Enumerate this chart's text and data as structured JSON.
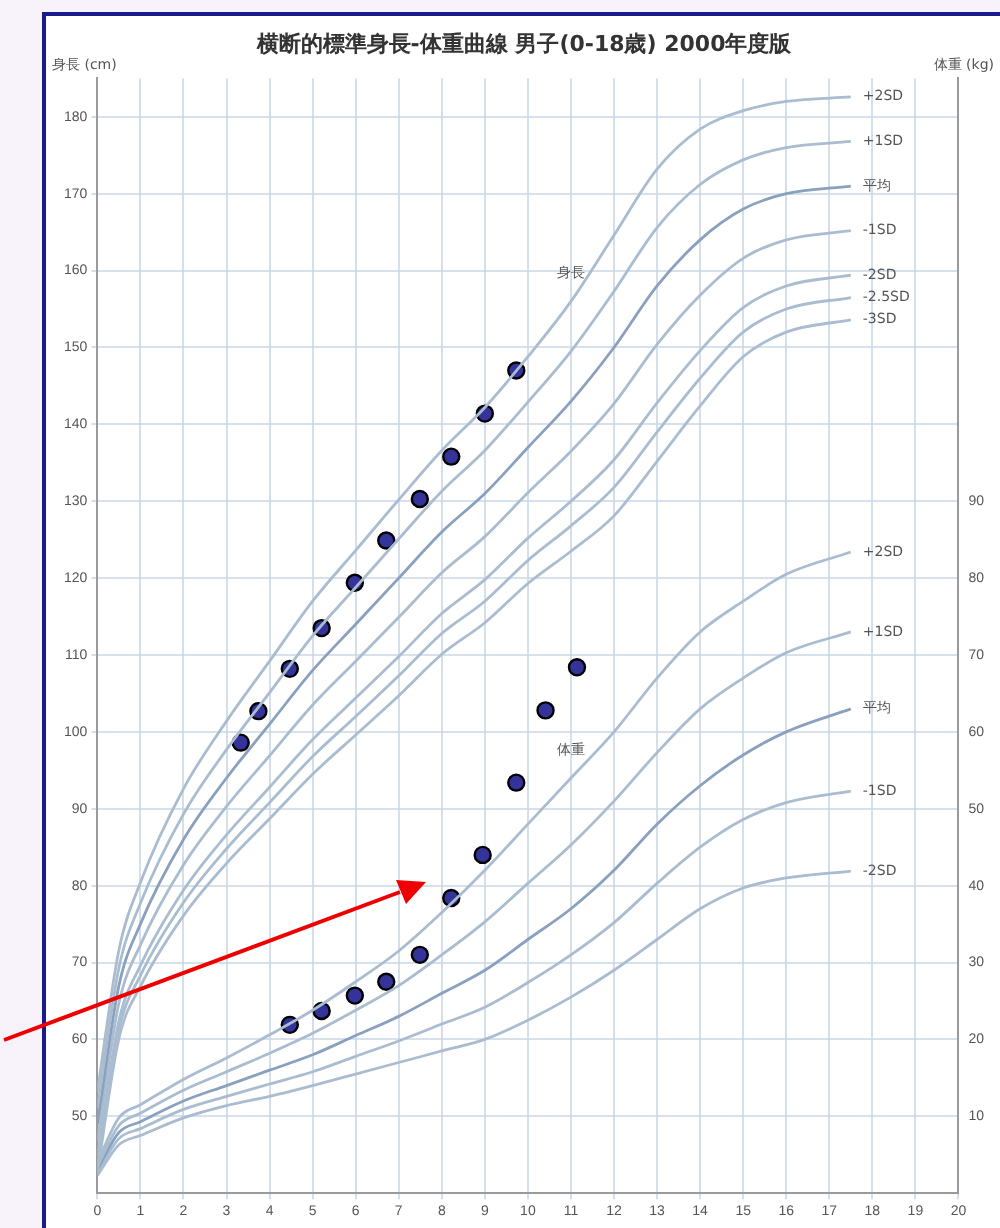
{
  "chart_data": {
    "type": "line",
    "title": "横断的標準身長-体重曲線 男子(0-18歳) 2000年度版",
    "ylabel": "身長 (cm)",
    "y2label": "体重 (kg)",
    "xlim": [
      0,
      20
    ],
    "xticks": [
      0,
      1,
      2,
      3,
      4,
      5,
      6,
      7,
      8,
      9,
      10,
      11,
      12,
      13,
      14,
      15,
      16,
      17,
      18,
      19,
      20
    ],
    "ylim": [
      40,
      185
    ],
    "yticks": [
      50,
      60,
      70,
      80,
      90,
      100,
      110,
      120,
      130,
      140,
      150,
      160,
      170,
      180
    ],
    "y2lim": [
      0,
      145
    ],
    "y2ticks": [
      10,
      20,
      30,
      40,
      50,
      60,
      70,
      80,
      90
    ],
    "grid": true,
    "legend": false,
    "annotations": [
      "身長",
      "体重"
    ],
    "series": [
      {
        "name": "+2SD",
        "color": "#a9bcd0",
        "x": [
          0,
          0.5,
          1,
          2,
          3,
          4,
          5,
          6,
          7,
          8,
          9,
          10,
          11,
          12,
          13,
          14,
          15,
          16,
          17.5
        ],
        "values": [
          53.2,
          71.6,
          80.4,
          92.6,
          101.4,
          109.2,
          117,
          123.6,
          130.2,
          136.6,
          142.2,
          148.8,
          156,
          164.6,
          173.2,
          178.4,
          180.8,
          182,
          182.6
        ]
      },
      {
        "name": "+1SD",
        "color": "#a9bcd0",
        "x": [
          0,
          0.5,
          1,
          2,
          3,
          4,
          5,
          6,
          7,
          8,
          9,
          10,
          11,
          12,
          13,
          14,
          15,
          16,
          17.5
        ],
        "values": [
          51.1,
          69.3,
          77.7,
          89.3,
          97.7,
          105.1,
          112.5,
          118.8,
          125.1,
          131.3,
          136.6,
          142.9,
          149.5,
          157.3,
          165.6,
          171.2,
          174.4,
          176,
          176.8
        ]
      },
      {
        "name": "平均",
        "color": "#8aa0bf",
        "x": [
          0,
          0.5,
          1,
          2,
          3,
          4,
          5,
          6,
          7,
          8,
          9,
          10,
          11,
          12,
          13,
          14,
          15,
          16,
          17.5
        ],
        "values": [
          49,
          67,
          75,
          86,
          94,
          101,
          108,
          114,
          120,
          126,
          131,
          137,
          143,
          150,
          158,
          164,
          168,
          170,
          171
        ]
      },
      {
        "name": "-1SD",
        "color": "#a9bcd0",
        "x": [
          0,
          0.5,
          1,
          2,
          3,
          4,
          5,
          6,
          7,
          8,
          9,
          10,
          11,
          12,
          13,
          14,
          15,
          16,
          17.5
        ],
        "values": [
          46.9,
          64.7,
          72.3,
          82.7,
          90.3,
          96.9,
          103.5,
          109.2,
          114.9,
          120.7,
          125.4,
          131.1,
          136.5,
          142.7,
          150.4,
          156.8,
          161.6,
          164,
          165.2
        ]
      },
      {
        "name": "-2SD",
        "color": "#a9bcd0",
        "x": [
          0,
          0.5,
          1,
          2,
          3,
          4,
          5,
          6,
          7,
          8,
          9,
          10,
          11,
          12,
          13,
          14,
          15,
          16,
          17.5
        ],
        "values": [
          44.8,
          62.4,
          69.6,
          79.4,
          86.6,
          92.8,
          99,
          104.4,
          109.8,
          115.4,
          119.8,
          125.2,
          130,
          135.4,
          142.8,
          149.6,
          155.2,
          158,
          159.4
        ]
      },
      {
        "name": "-2.5SD",
        "color": "#a9bcd0",
        "x": [
          0,
          0.5,
          1,
          2,
          3,
          4,
          5,
          6,
          7,
          8,
          9,
          10,
          11,
          12,
          13,
          14,
          15,
          16,
          17.5
        ],
        "values": [
          43.8,
          61.3,
          68.3,
          77.8,
          84.8,
          90.8,
          96.8,
          102,
          107.3,
          112.8,
          117,
          122.3,
          126.8,
          131.8,
          139,
          146,
          152,
          155,
          156.5
        ]
      },
      {
        "name": "-3SD",
        "color": "#a9bcd0",
        "x": [
          0,
          0.5,
          1,
          2,
          3,
          4,
          5,
          6,
          7,
          8,
          9,
          10,
          11,
          12,
          13,
          14,
          15,
          16,
          17.5
        ],
        "values": [
          42.7,
          60.1,
          66.9,
          76.1,
          82.9,
          88.7,
          94.5,
          99.6,
          104.7,
          110.1,
          114.2,
          119.3,
          123.5,
          128.1,
          135.2,
          142.4,
          148.8,
          152,
          153.6
        ]
      },
      {
        "name": "+2SD",
        "color": "#a9bcd0",
        "axis": "y2",
        "x": [
          0,
          0.5,
          1,
          2,
          3,
          4,
          5,
          6,
          7,
          8,
          9,
          10,
          11,
          12,
          13,
          14,
          15,
          16,
          17.5
        ],
        "values": [
          4,
          9.8,
          11.5,
          14.8,
          17.6,
          20.6,
          23.8,
          27.5,
          31.5,
          36.5,
          42,
          48,
          54,
          60,
          67,
          73,
          77,
          80.5,
          83.4
        ]
      },
      {
        "name": "+1SD",
        "color": "#a9bcd0",
        "axis": "y2",
        "x": [
          0,
          0.5,
          1,
          2,
          3,
          4,
          5,
          6,
          7,
          8,
          9,
          10,
          11,
          12,
          13,
          14,
          15,
          16,
          17.5
        ],
        "values": [
          3.5,
          8.8,
          10.4,
          13.4,
          15.8,
          18.2,
          20.8,
          23.8,
          27,
          31,
          35.3,
          40.3,
          45.3,
          51,
          57.3,
          63,
          67,
          70.3,
          73
        ]
      },
      {
        "name": "平均",
        "color": "#8aa0bf",
        "axis": "y2",
        "x": [
          0,
          0.5,
          1,
          2,
          3,
          4,
          5,
          6,
          7,
          8,
          9,
          10,
          11,
          12,
          13,
          14,
          15,
          16,
          17.5
        ],
        "values": [
          3.1,
          7.9,
          9.3,
          12,
          14,
          16,
          18,
          20.5,
          23,
          26,
          29,
          33,
          37,
          42,
          48,
          53,
          57,
          60,
          63
        ]
      },
      {
        "name": "-1SD",
        "color": "#a9bcd0",
        "axis": "y2",
        "x": [
          0,
          0.5,
          1,
          2,
          3,
          4,
          5,
          6,
          7,
          8,
          9,
          10,
          11,
          12,
          13,
          14,
          15,
          16,
          17.5
        ],
        "values": [
          2.7,
          7.1,
          8.4,
          10.9,
          12.6,
          14.2,
          15.8,
          17.8,
          19.8,
          22,
          24.2,
          27.4,
          31,
          35.2,
          40.3,
          45,
          48.6,
          50.8,
          52.3
        ]
      },
      {
        "name": "-2SD",
        "color": "#a9bcd0",
        "axis": "y2",
        "x": [
          0,
          0.5,
          1,
          2,
          3,
          4,
          5,
          6,
          7,
          8,
          9,
          10,
          11,
          12,
          13,
          14,
          15,
          16,
          17.5
        ],
        "values": [
          2.3,
          6.3,
          7.5,
          9.8,
          11.4,
          12.6,
          14,
          15.5,
          17,
          18.5,
          20,
          22.5,
          25.5,
          29,
          33,
          37,
          39.7,
          41,
          41.9
        ]
      },
      {
        "type": "scatter",
        "marker": "circle",
        "color": "#333399",
        "x": [
          3.33,
          3.74,
          4.47,
          5.21,
          5.98,
          6.71,
          7.49,
          8.22,
          9.0,
          9.73
        ],
        "values": [
          98.6,
          102.7,
          108.2,
          113.5,
          119.4,
          124.9,
          130.3,
          135.8,
          141.4,
          147.0
        ]
      },
      {
        "type": "scatter",
        "marker": "circle",
        "color": "#333399",
        "axis": "y2",
        "x": [
          4.47,
          5.21,
          5.98,
          6.71,
          7.49,
          8.22,
          8.95,
          9.73,
          10.41,
          11.14
        ],
        "values": [
          21.9,
          23.7,
          25.7,
          27.5,
          31.0,
          38.4,
          44.0,
          53.4,
          62.8,
          68.4
        ]
      }
    ]
  }
}
